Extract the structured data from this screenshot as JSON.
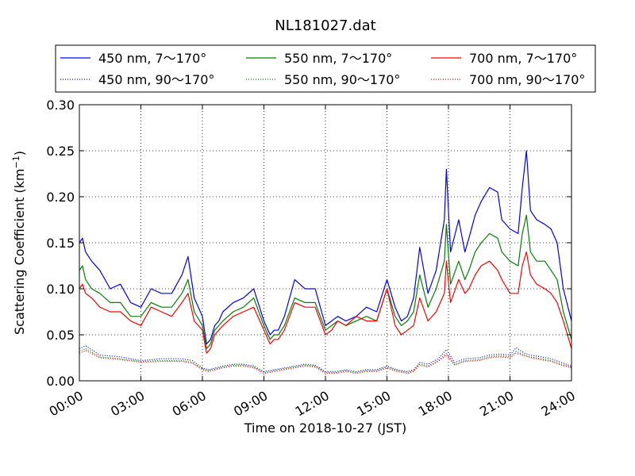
{
  "chart_data": {
    "type": "line",
    "title": "NL181027.dat",
    "xlabel": "Time on 2018-10-27 (JST)",
    "ylabel": "Scattering Coefficient (km",
    "ylabel_sup": "−1",
    "ylabel_close": ")",
    "xlim": [
      0,
      24
    ],
    "ylim": [
      0,
      0.3
    ],
    "x_ticks": [
      0,
      3,
      6,
      9,
      12,
      15,
      18,
      21,
      24
    ],
    "x_tick_labels": [
      "00:00",
      "03:00",
      "06:00",
      "09:00",
      "12:00",
      "15:00",
      "18:00",
      "21:00",
      "24:00"
    ],
    "y_ticks": [
      0,
      0.05,
      0.1,
      0.15,
      0.2,
      0.25,
      0.3
    ],
    "y_tick_labels": [
      "0.00",
      "0.05",
      "0.10",
      "0.15",
      "0.20",
      "0.25",
      "0.30"
    ],
    "grid": true,
    "legend_position": "top (above plot), 3 columns",
    "series": [
      {
        "name": "450 nm, 7～170°",
        "color": "#0000ff",
        "style": "solid",
        "x": [
          0,
          0.15,
          0.3,
          0.6,
          1.0,
          1.5,
          2.0,
          2.5,
          3.0,
          3.5,
          4.0,
          4.5,
          5.0,
          5.3,
          5.6,
          6.0,
          6.2,
          6.4,
          6.6,
          6.8,
          7.0,
          7.5,
          8.0,
          8.5,
          9.0,
          9.3,
          9.5,
          9.7,
          10.0,
          10.5,
          11.0,
          11.5,
          12.0,
          12.3,
          12.6,
          13.0,
          13.5,
          14.0,
          14.5,
          15.0,
          15.2,
          15.4,
          15.7,
          16.0,
          16.3,
          16.6,
          17.0,
          17.4,
          17.8,
          17.9,
          18.1,
          18.5,
          18.8,
          19.0,
          19.3,
          19.6,
          20.0,
          20.4,
          20.6,
          21.0,
          21.4,
          21.6,
          21.8,
          22.0,
          22.3,
          22.7,
          23.0,
          23.3,
          23.6,
          24.0
        ],
        "y": [
          0.15,
          0.155,
          0.14,
          0.13,
          0.12,
          0.1,
          0.105,
          0.085,
          0.08,
          0.1,
          0.095,
          0.095,
          0.115,
          0.135,
          0.09,
          0.07,
          0.04,
          0.045,
          0.06,
          0.065,
          0.075,
          0.085,
          0.09,
          0.1,
          0.065,
          0.05,
          0.055,
          0.055,
          0.07,
          0.11,
          0.1,
          0.1,
          0.06,
          0.065,
          0.07,
          0.065,
          0.07,
          0.08,
          0.075,
          0.11,
          0.095,
          0.08,
          0.065,
          0.07,
          0.09,
          0.145,
          0.095,
          0.12,
          0.175,
          0.23,
          0.14,
          0.175,
          0.14,
          0.155,
          0.18,
          0.195,
          0.21,
          0.205,
          0.175,
          0.165,
          0.16,
          0.21,
          0.25,
          0.185,
          0.175,
          0.17,
          0.165,
          0.15,
          0.1,
          0.065
        ]
      },
      {
        "name": "550 nm, 7～170°",
        "color": "#008000",
        "style": "solid",
        "x": [
          0,
          0.15,
          0.3,
          0.6,
          1.0,
          1.5,
          2.0,
          2.5,
          3.0,
          3.5,
          4.0,
          4.5,
          5.0,
          5.3,
          5.6,
          6.0,
          6.2,
          6.4,
          6.6,
          6.8,
          7.0,
          7.5,
          8.0,
          8.5,
          9.0,
          9.3,
          9.5,
          9.7,
          10.0,
          10.5,
          11.0,
          11.5,
          12.0,
          12.3,
          12.6,
          13.0,
          13.5,
          14.0,
          14.5,
          15.0,
          15.2,
          15.4,
          15.7,
          16.0,
          16.3,
          16.6,
          17.0,
          17.4,
          17.8,
          17.9,
          18.1,
          18.5,
          18.8,
          19.0,
          19.3,
          19.6,
          20.0,
          20.4,
          20.6,
          21.0,
          21.4,
          21.6,
          21.8,
          22.0,
          22.3,
          22.7,
          23.0,
          23.3,
          23.6,
          24.0
        ],
        "y": [
          0.12,
          0.125,
          0.11,
          0.1,
          0.095,
          0.085,
          0.085,
          0.07,
          0.07,
          0.085,
          0.08,
          0.08,
          0.095,
          0.11,
          0.075,
          0.06,
          0.035,
          0.04,
          0.055,
          0.06,
          0.065,
          0.075,
          0.08,
          0.09,
          0.06,
          0.045,
          0.05,
          0.05,
          0.06,
          0.09,
          0.085,
          0.085,
          0.055,
          0.06,
          0.065,
          0.06,
          0.065,
          0.07,
          0.065,
          0.1,
          0.085,
          0.07,
          0.06,
          0.065,
          0.075,
          0.115,
          0.08,
          0.1,
          0.13,
          0.17,
          0.105,
          0.13,
          0.11,
          0.12,
          0.14,
          0.15,
          0.16,
          0.155,
          0.14,
          0.13,
          0.125,
          0.16,
          0.18,
          0.14,
          0.13,
          0.13,
          0.12,
          0.11,
          0.075,
          0.045
        ]
      },
      {
        "name": "700 nm, 7～170°",
        "color": "#ff0000",
        "style": "solid",
        "x": [
          0,
          0.15,
          0.3,
          0.6,
          1.0,
          1.5,
          2.0,
          2.5,
          3.0,
          3.5,
          4.0,
          4.5,
          5.0,
          5.3,
          5.6,
          6.0,
          6.2,
          6.4,
          6.6,
          6.8,
          7.0,
          7.5,
          8.0,
          8.5,
          9.0,
          9.3,
          9.5,
          9.7,
          10.0,
          10.5,
          11.0,
          11.5,
          12.0,
          12.3,
          12.6,
          13.0,
          13.5,
          14.0,
          14.5,
          15.0,
          15.2,
          15.4,
          15.7,
          16.0,
          16.3,
          16.6,
          17.0,
          17.4,
          17.8,
          17.9,
          18.1,
          18.5,
          18.8,
          19.0,
          19.3,
          19.6,
          20.0,
          20.4,
          20.6,
          21.0,
          21.4,
          21.6,
          21.8,
          22.0,
          22.3,
          22.7,
          23.0,
          23.3,
          23.6,
          24.0
        ],
        "y": [
          0.1,
          0.105,
          0.095,
          0.09,
          0.08,
          0.075,
          0.075,
          0.065,
          0.06,
          0.08,
          0.075,
          0.07,
          0.085,
          0.095,
          0.065,
          0.055,
          0.03,
          0.035,
          0.05,
          0.055,
          0.06,
          0.07,
          0.075,
          0.08,
          0.055,
          0.04,
          0.045,
          0.045,
          0.055,
          0.085,
          0.08,
          0.08,
          0.05,
          0.055,
          0.065,
          0.06,
          0.07,
          0.065,
          0.065,
          0.1,
          0.08,
          0.06,
          0.05,
          0.055,
          0.06,
          0.09,
          0.065,
          0.075,
          0.095,
          0.13,
          0.085,
          0.11,
          0.095,
          0.1,
          0.115,
          0.125,
          0.13,
          0.12,
          0.11,
          0.095,
          0.095,
          0.125,
          0.14,
          0.115,
          0.105,
          0.1,
          0.095,
          0.085,
          0.065,
          0.035
        ]
      },
      {
        "name": "450 nm, 90～170°",
        "color": "#0000ff",
        "style": "dotted",
        "x": [
          0,
          0.3,
          1.0,
          2.0,
          3.0,
          4.0,
          5.0,
          5.5,
          6.0,
          6.3,
          7.0,
          7.5,
          8.0,
          8.5,
          9.0,
          9.5,
          10.0,
          10.5,
          11.0,
          11.5,
          12.0,
          12.5,
          13.0,
          13.5,
          14.0,
          14.5,
          15.0,
          15.5,
          16.0,
          16.3,
          16.6,
          17.0,
          17.5,
          17.9,
          18.3,
          18.8,
          19.5,
          20.0,
          20.5,
          21.0,
          21.3,
          21.7,
          22.0,
          22.5,
          23.0,
          23.5,
          24.0
        ],
        "y": [
          0.035,
          0.038,
          0.028,
          0.026,
          0.022,
          0.024,
          0.024,
          0.022,
          0.014,
          0.012,
          0.016,
          0.018,
          0.018,
          0.016,
          0.01,
          0.012,
          0.014,
          0.016,
          0.018,
          0.017,
          0.01,
          0.01,
          0.012,
          0.01,
          0.012,
          0.012,
          0.016,
          0.012,
          0.01,
          0.012,
          0.02,
          0.018,
          0.024,
          0.034,
          0.02,
          0.024,
          0.025,
          0.028,
          0.029,
          0.028,
          0.036,
          0.03,
          0.028,
          0.026,
          0.024,
          0.02,
          0.016
        ]
      },
      {
        "name": "550 nm, 90～170°",
        "color": "#008000",
        "style": "dotted",
        "x": [
          0,
          0.3,
          1.0,
          2.0,
          3.0,
          4.0,
          5.0,
          5.5,
          6.0,
          6.3,
          7.0,
          7.5,
          8.0,
          8.5,
          9.0,
          9.5,
          10.0,
          10.5,
          11.0,
          11.5,
          12.0,
          12.5,
          13.0,
          13.5,
          14.0,
          14.5,
          15.0,
          15.5,
          16.0,
          16.3,
          16.6,
          17.0,
          17.5,
          17.9,
          18.3,
          18.8,
          19.5,
          20.0,
          20.5,
          21.0,
          21.3,
          21.7,
          22.0,
          22.5,
          23.0,
          23.5,
          24.0
        ],
        "y": [
          0.032,
          0.035,
          0.026,
          0.024,
          0.021,
          0.022,
          0.022,
          0.02,
          0.013,
          0.011,
          0.015,
          0.017,
          0.017,
          0.015,
          0.009,
          0.011,
          0.013,
          0.015,
          0.017,
          0.016,
          0.009,
          0.009,
          0.011,
          0.009,
          0.011,
          0.011,
          0.015,
          0.011,
          0.009,
          0.011,
          0.018,
          0.016,
          0.022,
          0.03,
          0.018,
          0.022,
          0.023,
          0.026,
          0.027,
          0.026,
          0.032,
          0.028,
          0.026,
          0.024,
          0.022,
          0.018,
          0.015
        ]
      },
      {
        "name": "700 nm, 90～170°",
        "color": "#ff0000",
        "style": "dotted",
        "x": [
          0,
          0.3,
          1.0,
          2.0,
          3.0,
          4.0,
          5.0,
          5.5,
          6.0,
          6.3,
          7.0,
          7.5,
          8.0,
          8.5,
          9.0,
          9.5,
          10.0,
          10.5,
          11.0,
          11.5,
          12.0,
          12.5,
          13.0,
          13.5,
          14.0,
          14.5,
          15.0,
          15.5,
          16.0,
          16.3,
          16.6,
          17.0,
          17.5,
          17.9,
          18.3,
          18.8,
          19.5,
          20.0,
          20.5,
          21.0,
          21.3,
          21.7,
          22.0,
          22.5,
          23.0,
          23.5,
          24.0
        ],
        "y": [
          0.03,
          0.033,
          0.025,
          0.023,
          0.02,
          0.021,
          0.021,
          0.019,
          0.012,
          0.01,
          0.014,
          0.016,
          0.016,
          0.014,
          0.008,
          0.01,
          0.012,
          0.014,
          0.016,
          0.015,
          0.008,
          0.008,
          0.01,
          0.008,
          0.01,
          0.01,
          0.014,
          0.01,
          0.008,
          0.01,
          0.017,
          0.015,
          0.021,
          0.028,
          0.017,
          0.021,
          0.022,
          0.025,
          0.026,
          0.025,
          0.03,
          0.027,
          0.025,
          0.023,
          0.021,
          0.017,
          0.014
        ]
      }
    ],
    "legend_order": [
      0,
      1,
      2,
      3,
      4,
      5
    ]
  }
}
